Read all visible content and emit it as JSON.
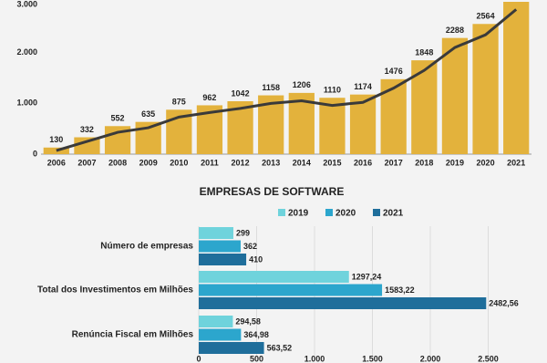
{
  "chart_data": [
    {
      "type": "bar",
      "categories": [
        "2006",
        "2007",
        "2008",
        "2009",
        "2010",
        "2011",
        "2012",
        "2013",
        "2014",
        "2015",
        "2016",
        "2017",
        "2018",
        "2019",
        "2020",
        "2021"
      ],
      "series": [
        {
          "type": "bar",
          "color": "#e3b23c",
          "values": [
            130,
            332,
            552,
            635,
            875,
            962,
            1042,
            1158,
            1206,
            1110,
            1174,
            1476,
            1848,
            2288,
            2564,
            3000
          ]
        },
        {
          "type": "line",
          "color": "#3a3a3a",
          "values": [
            70,
            250,
            430,
            520,
            730,
            820,
            900,
            1000,
            1050,
            960,
            1020,
            1300,
            1650,
            2100,
            2350,
            2850
          ]
        }
      ],
      "ylim": [
        0,
        3000
      ],
      "yticks": [
        0,
        {
          "value": 1000,
          "label": "1.000"
        },
        {
          "value": 2000,
          "label": "2.000"
        },
        {
          "value": 3000,
          "label": "3.000"
        }
      ]
    },
    {
      "type": "hbar",
      "title": "EMPRESAS DE SOFTWARE",
      "categories": [
        "Número de empresas",
        "Total dos Investimentos em Milhões",
        "Renúncia Fiscal em Milhões"
      ],
      "series": [
        {
          "name": "2019",
          "color": "#6fd3dc",
          "values": [
            299,
            1297.24,
            294.58
          ],
          "value_labels": [
            "299",
            "1297,24",
            "294,58"
          ]
        },
        {
          "name": "2020",
          "color": "#2ca6cd",
          "values": [
            362,
            1583.22,
            364.98
          ],
          "value_labels": [
            "362",
            "1583,22",
            "364,98"
          ]
        },
        {
          "name": "2021",
          "color": "#1f6e9b",
          "values": [
            410,
            2482.56,
            563.52
          ],
          "value_labels": [
            "410",
            "2482,56",
            "563,52"
          ]
        }
      ],
      "xlim": [
        0,
        3000
      ],
      "xticks": [
        0,
        500,
        {
          "value": 1000,
          "label": "1.000"
        },
        {
          "value": 1500,
          "label": "1.500"
        },
        {
          "value": 2000,
          "label": "2.000"
        },
        {
          "value": 2500,
          "label": "2.500"
        }
      ],
      "grid": true
    }
  ]
}
